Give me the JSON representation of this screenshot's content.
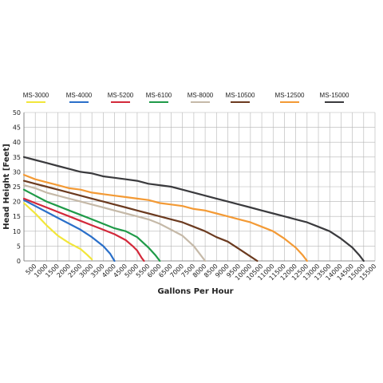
{
  "chart_data": {
    "type": "line",
    "title": "",
    "xlabel": "Gallons Per Hour",
    "ylabel": "Head Height [Feet]",
    "xlim": [
      0,
      15500
    ],
    "ylim": [
      0,
      50
    ],
    "grid": true,
    "legend_position": "top",
    "x_ticks": [
      "500",
      "1000",
      "1500",
      "2000",
      "2500",
      "3000",
      "3500",
      "4000",
      "4500",
      "5000",
      "5500",
      "6000",
      "6500",
      "7000",
      "7500",
      "8000",
      "8500",
      "9000",
      "9500",
      "10000",
      "10500",
      "11000",
      "11500",
      "12000",
      "12500",
      "13000",
      "13500",
      "14000",
      "14500",
      "15000",
      "15500"
    ],
    "y_ticks": [
      "0",
      "5",
      "10",
      "15",
      "20",
      "25",
      "30",
      "35",
      "40",
      "45",
      "50"
    ],
    "series": [
      {
        "name": "MS-3000",
        "color": "#f2e63a",
        "points": [
          [
            0,
            19.5
          ],
          [
            500,
            16
          ],
          [
            1000,
            12
          ],
          [
            1500,
            8.5
          ],
          [
            2000,
            6
          ],
          [
            2500,
            4
          ],
          [
            2800,
            2
          ],
          [
            3000,
            0.5
          ]
        ]
      },
      {
        "name": "MS-4000",
        "color": "#2a6fc9",
        "points": [
          [
            0,
            20.5
          ],
          [
            500,
            18.5
          ],
          [
            1000,
            16.5
          ],
          [
            1500,
            14.5
          ],
          [
            2000,
            12.5
          ],
          [
            2500,
            10.5
          ],
          [
            3000,
            8
          ],
          [
            3500,
            5
          ],
          [
            3800,
            2.5
          ],
          [
            4000,
            0
          ]
        ]
      },
      {
        "name": "MS-5200",
        "color": "#d3283a",
        "points": [
          [
            0,
            21
          ],
          [
            500,
            19.5
          ],
          [
            1000,
            18
          ],
          [
            1500,
            16.5
          ],
          [
            2000,
            15
          ],
          [
            2500,
            13.5
          ],
          [
            3000,
            12
          ],
          [
            3500,
            10.5
          ],
          [
            4000,
            9
          ],
          [
            4500,
            7
          ],
          [
            4800,
            5
          ],
          [
            5000,
            3.5
          ],
          [
            5200,
            1
          ],
          [
            5300,
            0
          ]
        ]
      },
      {
        "name": "MS-6100",
        "color": "#1f9a48",
        "points": [
          [
            0,
            24
          ],
          [
            500,
            22
          ],
          [
            1000,
            20
          ],
          [
            1500,
            18.5
          ],
          [
            2000,
            17
          ],
          [
            2500,
            15.5
          ],
          [
            3000,
            14
          ],
          [
            3500,
            12.5
          ],
          [
            4000,
            11
          ],
          [
            4500,
            10
          ],
          [
            5000,
            8
          ],
          [
            5500,
            4.5
          ],
          [
            5800,
            2
          ],
          [
            6000,
            0
          ]
        ]
      },
      {
        "name": "MS-8000",
        "color": "#c5b9a8",
        "points": [
          [
            0,
            25.5
          ],
          [
            500,
            24.5
          ],
          [
            1000,
            23
          ],
          [
            1500,
            22
          ],
          [
            2000,
            21
          ],
          [
            2500,
            20
          ],
          [
            3000,
            19
          ],
          [
            3500,
            18
          ],
          [
            4000,
            17
          ],
          [
            4500,
            16
          ],
          [
            5000,
            15
          ],
          [
            5500,
            14
          ],
          [
            6000,
            12.5
          ],
          [
            6500,
            10.5
          ],
          [
            7000,
            8.5
          ],
          [
            7500,
            5
          ],
          [
            7800,
            2
          ],
          [
            8000,
            0
          ]
        ]
      },
      {
        "name": "MS-10500",
        "color": "#6b3a1f",
        "points": [
          [
            0,
            27
          ],
          [
            500,
            26
          ],
          [
            1000,
            25
          ],
          [
            1500,
            24
          ],
          [
            2000,
            23
          ],
          [
            2500,
            22
          ],
          [
            3000,
            21
          ],
          [
            3500,
            20
          ],
          [
            4000,
            19
          ],
          [
            4500,
            18
          ],
          [
            5000,
            17
          ],
          [
            5500,
            16
          ],
          [
            6000,
            15
          ],
          [
            6500,
            14
          ],
          [
            7000,
            13
          ],
          [
            7500,
            11.5
          ],
          [
            8000,
            10
          ],
          [
            8500,
            8
          ],
          [
            9000,
            6.5
          ],
          [
            9500,
            4
          ],
          [
            10000,
            1.5
          ],
          [
            10300,
            0
          ]
        ]
      },
      {
        "name": "MS-12500",
        "color": "#f39a35",
        "points": [
          [
            0,
            29
          ],
          [
            500,
            27.5
          ],
          [
            1000,
            26.5
          ],
          [
            1500,
            25.5
          ],
          [
            2000,
            24.5
          ],
          [
            2500,
            24
          ],
          [
            3000,
            23
          ],
          [
            3500,
            22.5
          ],
          [
            4000,
            22
          ],
          [
            4500,
            21.5
          ],
          [
            5000,
            21
          ],
          [
            5500,
            20.5
          ],
          [
            6000,
            19.5
          ],
          [
            6500,
            19
          ],
          [
            7000,
            18.5
          ],
          [
            7500,
            17.5
          ],
          [
            8000,
            17
          ],
          [
            8500,
            16
          ],
          [
            9000,
            15
          ],
          [
            9500,
            14
          ],
          [
            10000,
            13
          ],
          [
            10500,
            11.5
          ],
          [
            11000,
            10
          ],
          [
            11500,
            7.5
          ],
          [
            12000,
            4.5
          ],
          [
            12300,
            2
          ],
          [
            12500,
            0
          ]
        ]
      },
      {
        "name": "MS-15000",
        "color": "#3a3a3d",
        "points": [
          [
            0,
            35
          ],
          [
            500,
            34
          ],
          [
            1000,
            33
          ],
          [
            1500,
            32
          ],
          [
            2000,
            31
          ],
          [
            2500,
            30
          ],
          [
            3000,
            29.5
          ],
          [
            3500,
            28.5
          ],
          [
            4000,
            28
          ],
          [
            4500,
            27.5
          ],
          [
            5000,
            27
          ],
          [
            5500,
            26
          ],
          [
            6000,
            25.5
          ],
          [
            6500,
            25
          ],
          [
            7000,
            24
          ],
          [
            7500,
            23
          ],
          [
            8000,
            22
          ],
          [
            8500,
            21
          ],
          [
            9000,
            20
          ],
          [
            9500,
            19
          ],
          [
            10000,
            18
          ],
          [
            10500,
            17
          ],
          [
            11000,
            16
          ],
          [
            11500,
            15
          ],
          [
            12000,
            14
          ],
          [
            12500,
            13
          ],
          [
            13000,
            11.5
          ],
          [
            13500,
            10
          ],
          [
            14000,
            7.5
          ],
          [
            14500,
            4.5
          ],
          [
            14800,
            2
          ],
          [
            15000,
            0
          ]
        ]
      }
    ]
  }
}
